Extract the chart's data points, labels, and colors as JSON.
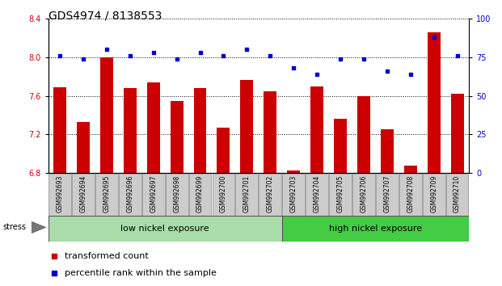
{
  "title": "GDS4974 / 8138553",
  "samples": [
    "GSM992693",
    "GSM992694",
    "GSM992695",
    "GSM992696",
    "GSM992697",
    "GSM992698",
    "GSM992699",
    "GSM992700",
    "GSM992701",
    "GSM992702",
    "GSM992703",
    "GSM992704",
    "GSM992705",
    "GSM992706",
    "GSM992707",
    "GSM992708",
    "GSM992709",
    "GSM992710"
  ],
  "bar_values": [
    7.69,
    7.33,
    8.0,
    7.68,
    7.74,
    7.55,
    7.68,
    7.27,
    7.76,
    7.65,
    6.83,
    7.7,
    7.36,
    7.6,
    7.25,
    6.88,
    8.26,
    7.62
  ],
  "dot_values": [
    76,
    74,
    80,
    76,
    78,
    74,
    78,
    76,
    80,
    76,
    68,
    64,
    74,
    74,
    66,
    64,
    88,
    76
  ],
  "bar_color": "#cc0000",
  "dot_color": "#0000cc",
  "ylim_left": [
    6.8,
    8.4
  ],
  "ylim_right": [
    0,
    100
  ],
  "yticks_left": [
    6.8,
    7.2,
    7.6,
    8.0,
    8.4
  ],
  "yticks_right": [
    0,
    25,
    50,
    75,
    100
  ],
  "group1_label": "low nickel exposure",
  "group2_label": "high nickel exposure",
  "group1_count": 10,
  "group2_count": 8,
  "stress_label": "stress",
  "legend_bar": "transformed count",
  "legend_dot": "percentile rank within the sample",
  "group1_color": "#aaddaa",
  "group2_color": "#44cc44",
  "bar_color_legend": "#cc0000",
  "dot_color_legend": "#0000cc",
  "bar_width": 0.55,
  "tick_fontsize": 7,
  "label_fontsize": 5.5,
  "group_fontsize": 8,
  "legend_fontsize": 8,
  "title_fontsize": 10
}
